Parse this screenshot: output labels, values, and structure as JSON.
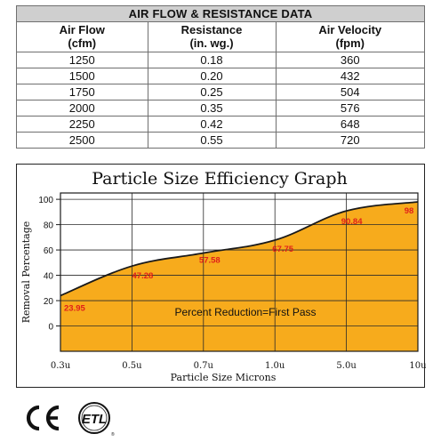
{
  "table": {
    "title": "AIR FLOW & RESISTANCE DATA",
    "headers": [
      [
        "Air Flow",
        "(cfm)"
      ],
      [
        "Resistance",
        "(in. wg.)"
      ],
      [
        "Air Velocity",
        "(fpm)"
      ]
    ],
    "rows": [
      [
        "1250",
        "0.18",
        "360"
      ],
      [
        "1500",
        "0.20",
        "432"
      ],
      [
        "1750",
        "0.25",
        "504"
      ],
      [
        "2000",
        "0.35",
        "576"
      ],
      [
        "2250",
        "0.42",
        "648"
      ],
      [
        "2500",
        "0.55",
        "720"
      ]
    ]
  },
  "chart_data": {
    "type": "area",
    "title": "Particle Size Efficiency Graph",
    "xlabel": "Particle Size Microns",
    "ylabel": "Removal Percentage",
    "categories": [
      "0.3u",
      "0.5u",
      "0.7u",
      "1.0u",
      "5.0u",
      "10u"
    ],
    "data_labels": [
      "23.95",
      "47.28",
      "57.58",
      "67.75",
      "90.84",
      "98"
    ],
    "points": [
      {
        "x": "0.3u",
        "y": 23.95
      },
      {
        "x": "0.5u",
        "y": 47.28
      },
      {
        "x": "0.7u",
        "y": 57.58
      },
      {
        "x": "1.0u",
        "y": 67.75
      },
      {
        "x": "5.0u",
        "y": 90.84
      },
      {
        "x": "10u",
        "y": 98
      }
    ],
    "yticks": [
      "0",
      "20",
      "40",
      "60",
      "80",
      "100"
    ],
    "ylim": [
      -20,
      105
    ],
    "annotation": "Percent Reduction=First Pass",
    "fill_color": "#f7ab1c",
    "label_color": "#e0201a",
    "grid": true
  },
  "logos": {
    "ce": "CE",
    "etl": "ETL"
  }
}
